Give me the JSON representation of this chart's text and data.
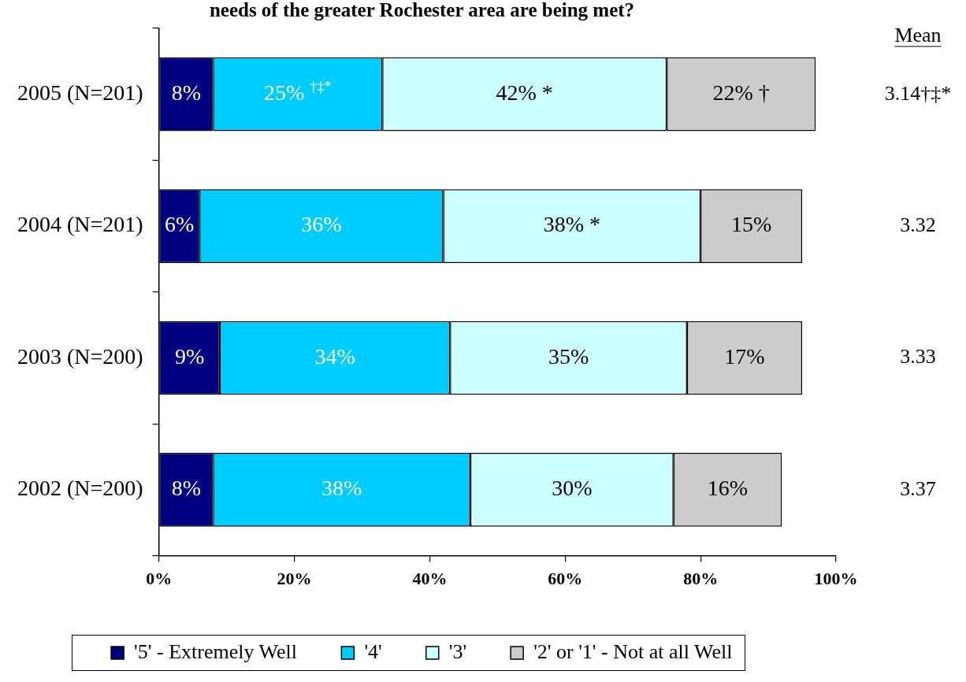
{
  "chart_data": {
    "type": "bar",
    "orientation": "horizontal",
    "stacked": true,
    "title": "needs of the greater Rochester area are being met?",
    "categories": [
      "2005 (N=201)",
      "2004 (N=201)",
      "2003 (N=200)",
      "2002 (N=200)"
    ],
    "series": [
      {
        "name": "'5' - Extremely Well",
        "color": "#000080",
        "values": [
          8,
          6,
          9,
          8
        ],
        "value_labels": [
          "8%",
          "6%",
          "9%",
          "8%"
        ]
      },
      {
        "name": "'4'",
        "color": "#00ccff",
        "values": [
          25,
          36,
          34,
          38
        ],
        "value_labels": [
          "25% $^{†‡*}$",
          "36%",
          "34%",
          "38%"
        ]
      },
      {
        "name": "'3'",
        "color": "#ccffff",
        "values": [
          42,
          38,
          35,
          30
        ],
        "value_labels": [
          "42% *",
          "38% *",
          "35%",
          "30%"
        ]
      },
      {
        "name": "'2' or '1' - Not at all Well",
        "color": "#cccccc",
        "values": [
          22,
          15,
          17,
          16
        ],
        "value_labels": [
          "22% †",
          "15%",
          "17%",
          "16%"
        ]
      }
    ],
    "xlim": [
      0,
      100
    ],
    "xticks": [
      {
        "value": 0,
        "label": "0%"
      },
      {
        "value": 20,
        "label": "20%"
      },
      {
        "value": 40,
        "label": "40%"
      },
      {
        "value": 60,
        "label": "60%"
      },
      {
        "value": 80,
        "label": "80%"
      },
      {
        "value": 100,
        "label": "100%"
      }
    ],
    "grid": false,
    "legend": "bottom",
    "annotations": [
      "Mean",
      "3.14†‡*",
      "3.32",
      "3.33",
      "3.37"
    ]
  }
}
